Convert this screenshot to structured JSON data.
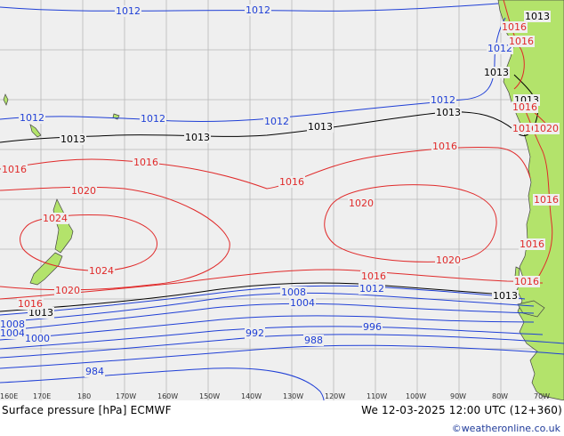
{
  "map": {
    "title": "Surface pressure [hPa] ECMWF",
    "valid_time": "We 12-03-2025 12:00 UTC (12+360)",
    "credit": "©weatheronline.co.uk",
    "colors": {
      "ocean": "#efefef",
      "land": "#b3e36b",
      "grid": "#b8b8b8",
      "low_isobar": "#1f3fd6",
      "high_isobar": "#e02a2a",
      "reference_isobar": "#000000"
    },
    "longitude_labels": [
      "160E",
      "170E",
      "180",
      "170W",
      "160W",
      "150W",
      "140W",
      "130W",
      "120W",
      "110W",
      "100W",
      "90W",
      "80W",
      "70W"
    ],
    "isobar_labels": {
      "blue_1012_a": "1012",
      "blue_1012_b": "1012",
      "blue_1012_c": "1012",
      "blue_1012_d": "1012",
      "blue_1012_e": "1012",
      "blue_1012_f": "1012",
      "blue_1012_g": "1012",
      "black_1013_a": "1013",
      "black_1013_b": "1013",
      "black_1013_c": "1013",
      "black_1013_d": "1013",
      "black_1013_e": "1013",
      "black_1013_f": "1013",
      "black_1013_g": "1013",
      "red_1016_a": "1016",
      "red_1016_b": "1016",
      "red_1016_c": "1016",
      "red_1016_d": "1016",
      "red_1016_e": "1016",
      "red_1016_f": "1016",
      "red_1016_g": "1016",
      "red_1016_h": "1016",
      "red_1020_a": "1020",
      "red_1020_b": "1020",
      "red_1020_c": "1020",
      "red_1020_d": "1020",
      "red_1024_a": "1024",
      "red_1024_b": "1024",
      "blue_1012_h": "1012",
      "blue_1008_a": "1008",
      "blue_1008_b": "1008",
      "blue_1004_a": "1004",
      "blue_1004_b": "1004",
      "blue_1000": "1000",
      "blue_996": "996",
      "blue_992": "992",
      "blue_988": "988",
      "blue_984": "984",
      "black_1013_h": "1013",
      "black_1013_i": "1013",
      "red_1016_i": "1016",
      "red_1016_j": "1016",
      "red_1016_k": "1016",
      "red_1016_l": "1016",
      "red_1020_coast": "1020",
      "red_1016_m": "1016"
    }
  }
}
